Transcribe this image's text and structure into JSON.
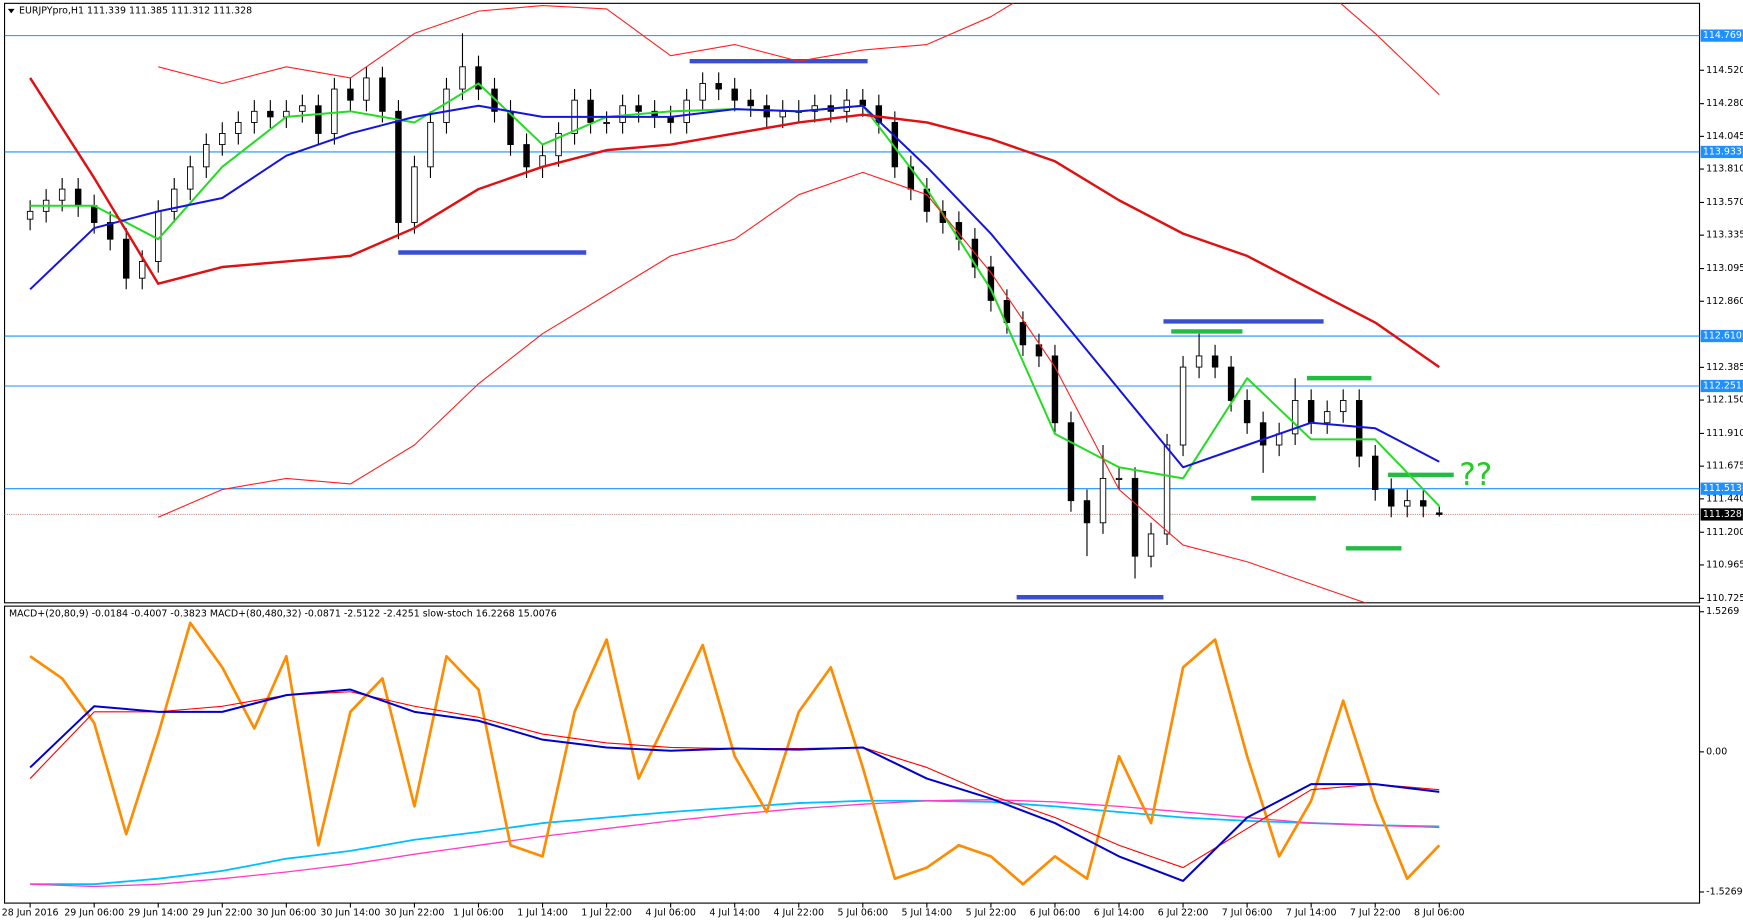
{
  "chart_data": [
    {
      "type": "candlestick",
      "title": "EURJPYpro,H1  111.339 111.385 111.312 111.328",
      "open": [
        113.45,
        113.506,
        113.586,
        113.666,
        113.546,
        113.426,
        113.306,
        113.026,
        113.146,
        113.506,
        113.666,
        113.826,
        113.986,
        114.066,
        114.145,
        114.225,
        114.185,
        114.225,
        114.265,
        114.066,
        114.385,
        114.305,
        114.465,
        114.225,
        113.426,
        113.826,
        114.145,
        114.385,
        114.545,
        114.385,
        114.225,
        113.986,
        113.826,
        113.906,
        114.066,
        114.305,
        114.145,
        114.145,
        114.265,
        114.225,
        114.185,
        114.145,
        114.305,
        114.425,
        114.385,
        114.305,
        114.265,
        114.185,
        114.225,
        114.225,
        114.265,
        114.225,
        114.305,
        114.265,
        114.145,
        113.826,
        113.666,
        113.506,
        113.426,
        113.306,
        113.106,
        112.866,
        112.707,
        112.547,
        112.467,
        111.987,
        111.427,
        111.268,
        111.587,
        111.587,
        111.028,
        111.188,
        111.827,
        112.387,
        112.467,
        112.387,
        112.147,
        111.987,
        111.827,
        111.907,
        112.147,
        111.987,
        112.067,
        112.147,
        111.747,
        111.507,
        111.388,
        111.427,
        111.339
      ],
      "high": [
        113.586,
        113.666,
        113.746,
        113.746,
        113.626,
        113.506,
        113.386,
        113.226,
        113.586,
        113.746,
        113.906,
        114.066,
        114.146,
        114.225,
        114.305,
        114.305,
        114.305,
        114.345,
        114.345,
        114.465,
        114.465,
        114.545,
        114.545,
        114.305,
        113.906,
        114.225,
        114.465,
        114.785,
        114.625,
        114.465,
        114.305,
        114.066,
        113.986,
        114.146,
        114.385,
        114.385,
        114.225,
        114.345,
        114.345,
        114.305,
        114.265,
        114.385,
        114.505,
        114.505,
        114.465,
        114.385,
        114.345,
        114.305,
        114.305,
        114.345,
        114.345,
        114.385,
        114.385,
        114.345,
        114.225,
        113.906,
        113.746,
        113.586,
        113.506,
        113.386,
        113.186,
        112.946,
        112.787,
        112.627,
        112.547,
        112.067,
        111.507,
        111.827,
        111.667,
        111.667,
        111.268,
        111.907,
        112.467,
        112.627,
        112.547,
        112.467,
        112.227,
        112.067,
        111.987,
        112.307,
        112.227,
        112.147,
        112.227,
        112.227,
        111.827,
        111.587,
        111.507,
        111.507,
        111.385
      ],
      "low": [
        113.37,
        113.426,
        113.506,
        113.466,
        113.346,
        113.226,
        112.946,
        112.946,
        113.066,
        113.426,
        113.586,
        113.746,
        113.906,
        113.986,
        114.065,
        114.105,
        114.105,
        114.145,
        113.986,
        113.986,
        114.225,
        114.225,
        114.145,
        113.306,
        113.346,
        113.746,
        114.065,
        114.305,
        114.305,
        114.145,
        113.906,
        113.746,
        113.746,
        113.826,
        113.986,
        114.065,
        114.065,
        114.065,
        114.145,
        114.105,
        114.065,
        114.065,
        114.225,
        114.305,
        114.225,
        114.185,
        114.105,
        114.105,
        114.145,
        114.145,
        114.145,
        114.145,
        114.185,
        114.065,
        113.746,
        113.586,
        113.426,
        113.346,
        113.226,
        113.026,
        112.786,
        112.627,
        112.467,
        112.387,
        111.907,
        111.347,
        111.028,
        111.188,
        111.507,
        110.868,
        110.948,
        111.108,
        111.747,
        112.307,
        112.307,
        112.067,
        111.907,
        111.627,
        111.747,
        111.827,
        111.907,
        111.907,
        111.987,
        111.667,
        111.427,
        111.308,
        111.308,
        111.308,
        111.312
      ],
      "close": [
        113.506,
        113.586,
        113.666,
        113.546,
        113.426,
        113.306,
        113.026,
        113.146,
        113.506,
        113.666,
        113.826,
        113.986,
        114.066,
        114.145,
        114.225,
        114.185,
        114.225,
        114.265,
        114.066,
        114.385,
        114.305,
        114.465,
        114.225,
        113.426,
        113.826,
        114.145,
        114.385,
        114.545,
        114.385,
        114.225,
        113.986,
        113.826,
        113.906,
        114.066,
        114.305,
        114.145,
        114.145,
        114.265,
        114.225,
        114.185,
        114.145,
        114.305,
        114.425,
        114.385,
        114.305,
        114.265,
        114.185,
        114.225,
        114.225,
        114.265,
        114.225,
        114.305,
        114.265,
        114.145,
        113.826,
        113.666,
        113.506,
        113.426,
        113.306,
        113.106,
        112.866,
        112.707,
        112.547,
        112.467,
        111.987,
        111.427,
        111.268,
        111.587,
        111.587,
        111.028,
        111.188,
        111.827,
        112.387,
        112.467,
        112.387,
        112.147,
        111.987,
        111.827,
        111.907,
        112.147,
        111.987,
        112.067,
        112.147,
        111.747,
        111.507,
        111.388,
        111.427,
        111.388,
        111.328
      ],
      "up_color": "#ffffff",
      "down_color": "#000000",
      "ylim": [
        110.693,
        115.001
      ],
      "yticks": [
        {
          "value": 114.52,
          "label": "114.520"
        },
        {
          "value": 114.28,
          "label": "114.280"
        },
        114.045,
        {
          "value": 113.81,
          "label": "113.810"
        },
        {
          "value": 113.57,
          "label": "113.570"
        },
        113.335,
        113.095,
        {
          "value": 112.86,
          "label": "112.860"
        },
        112.385,
        {
          "value": 112.15,
          "label": "112.150"
        },
        {
          "value": 111.91,
          "label": "111.910"
        },
        111.675,
        {
          "value": 111.44,
          "label": "111.440"
        },
        {
          "value": 111.2,
          "label": "111.200"
        },
        110.965,
        110.725
      ],
      "levels": [
        114.769,
        113.933,
        {
          "value": 112.61,
          "label": "112.610"
        },
        112.251,
        111.513
      ],
      "level_color": "#1e90ff",
      "current_price": 111.328,
      "annotation": "??",
      "annotation_color": "#22cc22"
    },
    {
      "type": "line",
      "categories": [
        "28 Jun 2016",
        "29 Jun 06:00",
        "29 Jun 14:00",
        "29 Jun 22:00",
        "30 Jun 06:00",
        "30 Jun 14:00",
        "30 Jun 22:00",
        "1 Jul 06:00",
        "1 Jul 14:00",
        "1 Jul 22:00",
        "4 Jul 06:00",
        "4 Jul 14:00",
        "4 Jul 22:00",
        "5 Jul 06:00",
        "5 Jul 14:00",
        "5 Jul 22:00",
        "6 Jul 06:00",
        "6 Jul 14:00",
        "6 Jul 22:00",
        "7 Jul 06:00",
        "7 Jul 14:00",
        "7 Jul 22:00",
        "8 Jul 06:00"
      ],
      "ylim": [
        110.693,
        115.001
      ],
      "series": [
        {
          "color": "#22dd22",
          "width": 1.8,
          "values": [
            113.546,
            113.546,
            113.306,
            113.826,
            114.185,
            114.225,
            114.145,
            114.425,
            113.986,
            114.185,
            114.225,
            114.241,
            114.225,
            114.265,
            113.666,
            112.946,
            111.907,
            111.667,
            111.587,
            112.307,
            111.867,
            111.867,
            111.388
          ]
        },
        {
          "color": "#1414e0",
          "width": 1.8,
          "values": [
            112.946,
            113.386,
            113.506,
            113.602,
            113.906,
            114.066,
            114.185,
            114.265,
            114.185,
            114.185,
            114.185,
            114.241,
            114.225,
            114.265,
            113.826,
            113.346,
            112.787,
            112.227,
            111.667,
            111.827,
            111.987,
            111.947,
            111.707
          ]
        },
        {
          "color": "#e01010",
          "width": 2.2,
          "values": [
            114.465,
            113.746,
            112.986,
            113.106,
            113.146,
            113.186,
            113.386,
            113.666,
            113.826,
            113.946,
            113.986,
            114.066,
            114.145,
            114.201,
            114.145,
            114.026,
            113.866,
            113.586,
            113.346,
            113.186,
            112.946,
            112.707,
            112.387
          ]
        },
        {
          "color": "#ff2020",
          "width": 1,
          "values": [
            null,
            null,
            114.545,
            114.425,
            114.545,
            114.465,
            114.785,
            114.945,
            114.985,
            114.961,
            114.625,
            114.705,
            114.585,
            114.665,
            114.705,
            114.905,
            115.185,
            115.185,
            115.185,
            115.185,
            115.185,
            114.785,
            114.345
          ]
        },
        {
          "color": "#ff2020",
          "width": 1,
          "values": [
            null,
            null,
            111.308,
            111.507,
            111.587,
            111.547,
            111.827,
            112.267,
            112.627,
            112.906,
            113.186,
            113.306,
            113.626,
            113.786,
            113.626,
            113.066,
            112.387,
            111.507,
            111.108,
            110.988,
            110.828,
            110.668,
            null
          ]
        }
      ]
    },
    {
      "type": "line",
      "title": "MACD+(20,80,9) -0.0184 -0.4007 -0.3823  MACD+(80,480,32) -0.0871 -2.5122 -2.4251  slow-stoch 16.2268 15.0076",
      "ylim": [
        -1.648,
        1.588
      ],
      "yticks": [
        1.5269,
        {
          "value": 0,
          "label": "0.00"
        },
        -1.5269
      ],
      "series": [
        {
          "color": "#00bfff",
          "width": 1.6,
          "values": [
            -1.442,
            -1.442,
            -1.442,
            -1.412,
            -1.382,
            -1.34,
            -1.297,
            -1.231,
            -1.164,
            -1.122,
            -1.079,
            -1.019,
            -0.958,
            -0.916,
            -0.873,
            -0.825,
            -0.776,
            -0.746,
            -0.715,
            -0.685,
            -0.655,
            -0.631,
            -0.606,
            -0.582,
            -0.558,
            -0.546,
            -0.533,
            -0.533,
            -0.533,
            -0.539,
            -0.545,
            -0.57,
            -0.594,
            -0.625,
            -0.655,
            -0.685,
            -0.715,
            -0.734,
            -0.752,
            -0.764,
            -0.776,
            -0.788,
            -0.8,
            -0.806,
            -0.812
          ]
        },
        {
          "color": "#ff3cc8",
          "width": 1.2,
          "values": [
            -1.442,
            -1.455,
            -1.467,
            -1.455,
            -1.442,
            -1.412,
            -1.382,
            -1.346,
            -1.309,
            -1.267,
            -1.224,
            -1.17,
            -1.115,
            -1.067,
            -1.018,
            -0.97,
            -0.921,
            -0.879,
            -0.836,
            -0.794,
            -0.752,
            -0.716,
            -0.679,
            -0.649,
            -0.618,
            -0.594,
            -0.57,
            -0.552,
            -0.533,
            -0.527,
            -0.521,
            -0.533,
            -0.545,
            -0.57,
            -0.594,
            -0.625,
            -0.655,
            -0.685,
            -0.715,
            -0.746,
            -0.776,
            -0.788,
            -0.8,
            -0.812,
            -0.824
          ]
        },
        {
          "color": "#ff8c00",
          "width": 2.4,
          "values": [
            1.042,
            0.8,
            0.315,
            -0.897,
            0.194,
            1.406,
            0.921,
            0.255,
            1.042,
            -1.018,
            0.436,
            0.8,
            -0.594,
            1.042,
            0.679,
            -1.018,
            -1.139,
            0.436,
            1.224,
            -0.291,
            0.436,
            1.164,
            -0.048,
            -0.655,
            0.436,
            0.921,
            -0.17,
            -1.382,
            -1.261,
            -1.018,
            -1.139,
            -1.442,
            -1.139,
            -1.382,
            -0.048,
            -0.776,
            0.921,
            1.224,
            -0.048,
            -1.139,
            -0.533,
            0.558,
            -0.533,
            -1.382,
            -1.018
          ]
        },
        {
          "color": "#ff0000",
          "width": 1,
          "values": [
            -0.291,
            0.073,
            0.436,
            0.436,
            0.436,
            0.467,
            0.497,
            0.558,
            0.618,
            0.637,
            0.655,
            0.576,
            0.497,
            0.437,
            0.376,
            0.285,
            0.194,
            0.146,
            0.097,
            0.073,
            0.048,
            0.042,
            0.036,
            0.036,
            0.036,
            0.042,
            0.048,
            -0.061,
            -0.17,
            -0.322,
            -0.473,
            -0.594,
            -0.715,
            -0.867,
            -1.018,
            -1.14,
            -1.261,
            -1.049,
            -0.836,
            -0.624,
            -0.412,
            -0.382,
            -0.352,
            -0.382,
            -0.412
          ]
        },
        {
          "color": "#0000cc",
          "width": 1.8,
          "values": [
            -0.17,
            0.164,
            0.497,
            0.467,
            0.436,
            0.436,
            0.436,
            0.527,
            0.618,
            0.649,
            0.679,
            0.558,
            0.436,
            0.388,
            0.339,
            0.236,
            0.133,
            0.091,
            0.048,
            0.03,
            0.012,
            0.024,
            0.036,
            0.03,
            0.024,
            0.036,
            0.048,
            -0.122,
            -0.291,
            -0.4,
            -0.509,
            -0.643,
            -0.776,
            -0.958,
            -1.139,
            -1.273,
            -1.406,
            -1.061,
            -0.715,
            -0.534,
            -0.352,
            -0.352,
            -0.352,
            -0.394,
            -0.436
          ]
        }
      ]
    }
  ]
}
